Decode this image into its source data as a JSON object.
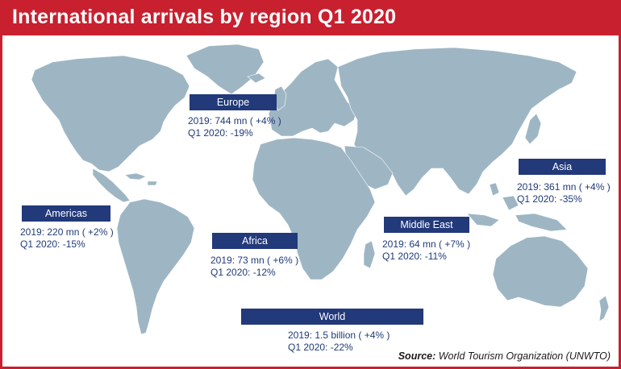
{
  "title": "International arrivals by region Q1 2020",
  "colors": {
    "accent": "#c8202f",
    "label_bar": "#22397a",
    "land": "#9eb6c4",
    "text": "#1f3a78"
  },
  "regions": {
    "europe": {
      "name": "Europe",
      "line1": "2019: 744 mn ( +4% )",
      "line2": "Q1 2020: -19%"
    },
    "americas": {
      "name": "Americas",
      "line1": "2019: 220 mn ( +2% )",
      "line2": "Q1 2020: -15%"
    },
    "africa": {
      "name": "Africa",
      "line1": "2019: 73 mn ( +6% )",
      "line2": "Q1 2020: -12%"
    },
    "middle_east": {
      "name": "Middle East",
      "line1": "2019: 64 mn ( +7% )",
      "line2": "Q1 2020: -11%"
    },
    "asia": {
      "name": "Asia",
      "line1": "2019: 361 mn ( +4% )",
      "line2": "Q1 2020: -35%"
    },
    "world": {
      "name": "World",
      "line1": "2019: 1.5 billion ( +4% )",
      "line2": "Q1 2020: -22%"
    }
  },
  "source": {
    "label": "Source:",
    "text": "World Tourism Organization (UNWTO)"
  }
}
